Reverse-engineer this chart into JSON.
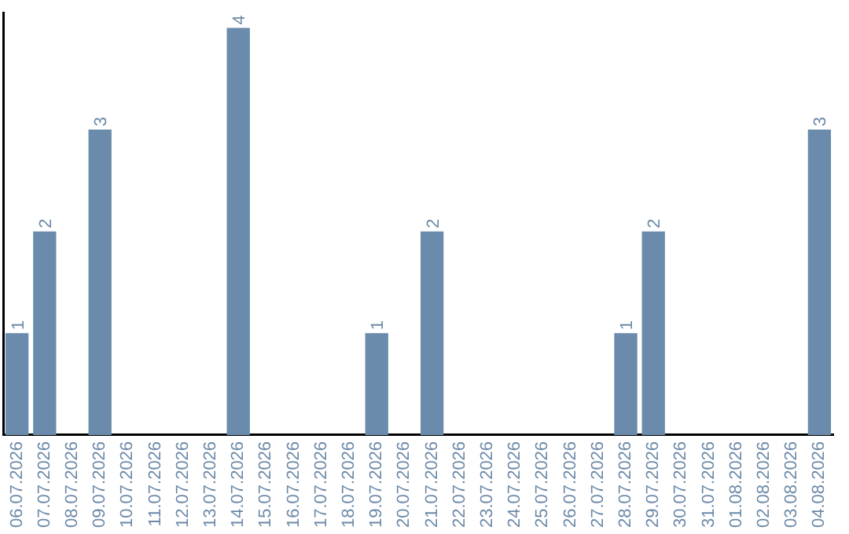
{
  "chart_data": {
    "type": "bar",
    "categories": [
      "06.07.2026",
      "07.07.2026",
      "08.07.2026",
      "09.07.2026",
      "10.07.2026",
      "11.07.2026",
      "12.07.2026",
      "13.07.2026",
      "14.07.2026",
      "15.07.2026",
      "16.07.2026",
      "17.07.2026",
      "18.07.2026",
      "19.07.2026",
      "20.07.2026",
      "21.07.2026",
      "22.07.2026",
      "23.07.2026",
      "24.07.2026",
      "25.07.2026",
      "26.07.2026",
      "27.07.2026",
      "28.07.2026",
      "29.07.2026",
      "30.07.2026",
      "31.07.2026",
      "01.08.2026",
      "02.08.2026",
      "03.08.2026",
      "04.08.2026"
    ],
    "values": [
      1,
      2,
      0,
      3,
      0,
      0,
      0,
      0,
      4,
      0,
      0,
      0,
      0,
      1,
      0,
      2,
      0,
      0,
      0,
      0,
      0,
      0,
      1,
      2,
      0,
      0,
      0,
      0,
      0,
      3
    ],
    "value_labels": [
      "1",
      "2",
      null,
      "3",
      null,
      null,
      null,
      null,
      "4",
      null,
      null,
      null,
      null,
      "1",
      null,
      "2",
      null,
      null,
      null,
      null,
      null,
      null,
      "1",
      "2",
      null,
      null,
      null,
      null,
      null,
      "3"
    ],
    "color": "#6a8bab",
    "ylim": [
      0,
      4.15
    ],
    "tick_labels": "x",
    "grid": false,
    "legend": false
  }
}
